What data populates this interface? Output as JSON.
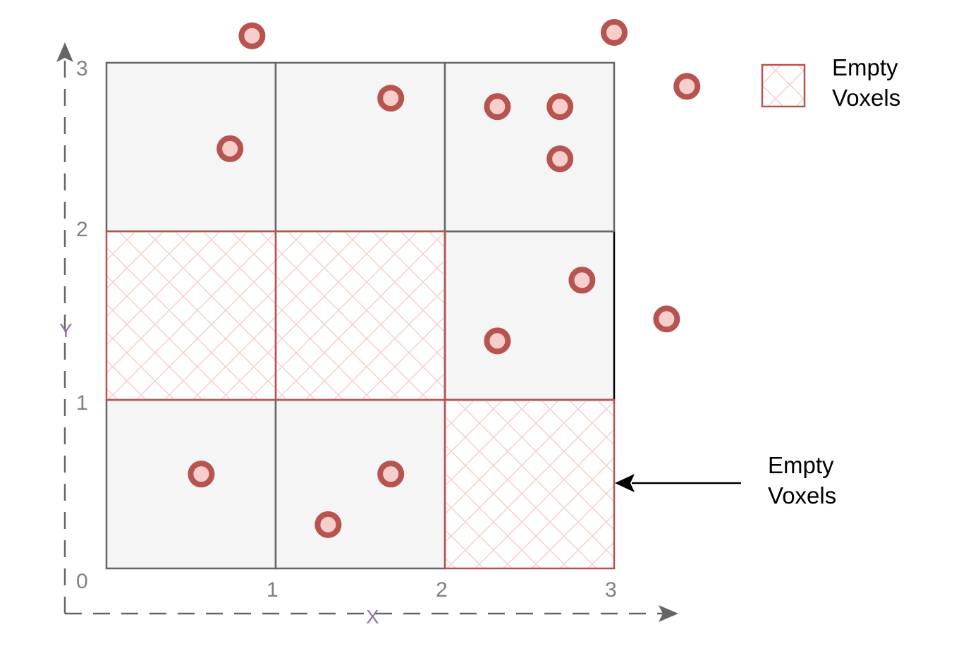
{
  "grid": {
    "x_ticks": [
      "0",
      "1",
      "2",
      "3"
    ],
    "y_ticks": [
      "0",
      "1",
      "2",
      "3"
    ],
    "x_axis_label": "X",
    "y_axis_label": "Y",
    "cells": [
      {
        "col": 0,
        "row": 0,
        "empty": false
      },
      {
        "col": 1,
        "row": 0,
        "empty": false
      },
      {
        "col": 2,
        "row": 0,
        "empty": true
      },
      {
        "col": 0,
        "row": 1,
        "empty": true
      },
      {
        "col": 1,
        "row": 1,
        "empty": true
      },
      {
        "col": 2,
        "row": 1,
        "empty": false
      },
      {
        "col": 0,
        "row": 2,
        "empty": false
      },
      {
        "col": 1,
        "row": 2,
        "empty": false
      },
      {
        "col": 2,
        "row": 2,
        "empty": false
      }
    ]
  },
  "points": [
    [
      0.56,
      0.56
    ],
    [
      1.68,
      0.56
    ],
    [
      1.31,
      0.26
    ],
    [
      2.31,
      1.35
    ],
    [
      2.81,
      1.71
    ],
    [
      0.73,
      2.49
    ],
    [
      1.68,
      2.79
    ],
    [
      2.31,
      2.74
    ],
    [
      2.68,
      2.74
    ],
    [
      2.68,
      2.43
    ],
    [
      0.86,
      3.16
    ],
    [
      3.0,
      3.18
    ],
    [
      3.43,
      2.86
    ],
    [
      3.31,
      1.48
    ]
  ],
  "legend": {
    "line1": "Empty",
    "line2": "Voxels"
  },
  "annotation": {
    "line1": "Empty",
    "line2": "Voxels"
  },
  "colors": {
    "cell_fill": "#f5f5f5",
    "cell_border": "#666666",
    "empty_border": "#b85450",
    "hatch": "#f8cecc",
    "point_ring": "#b85450",
    "point_fill": "#f8cecc",
    "axis": "#666666",
    "axis_label": "#9673a6"
  }
}
